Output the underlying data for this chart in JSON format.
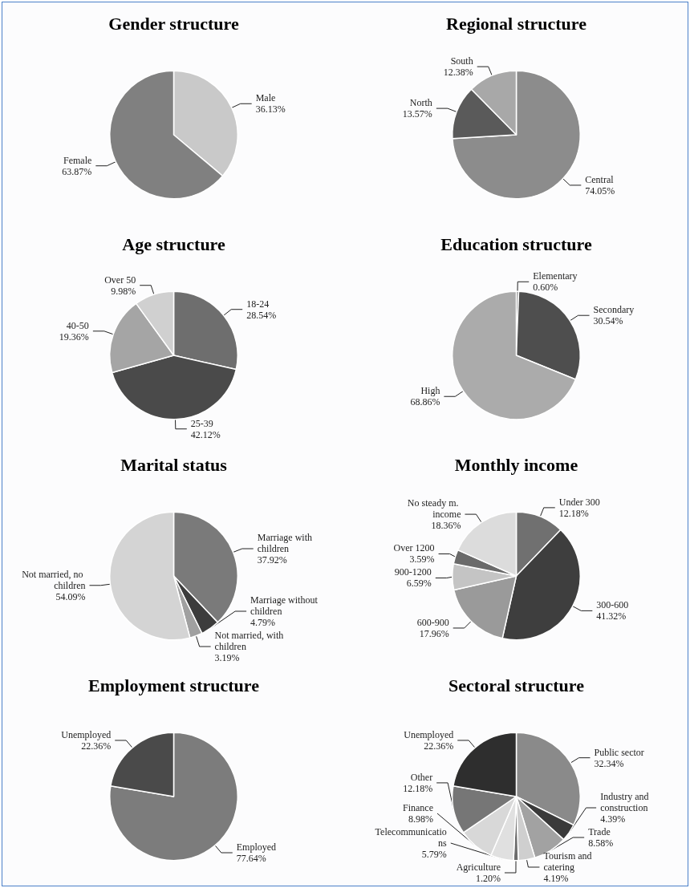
{
  "chart_data": [
    {
      "type": "pie",
      "title": "Gender structure",
      "categories": [
        "Male",
        "Female"
      ],
      "values": [
        36.13,
        63.87
      ],
      "value_labels": [
        "36.13%",
        "63.87%"
      ],
      "colors": [
        "#c9c9c9",
        "#808080"
      ]
    },
    {
      "type": "pie",
      "title": "Regional structure",
      "categories": [
        "Central",
        "North",
        "South"
      ],
      "values": [
        74.05,
        13.57,
        12.38
      ],
      "value_labels": [
        "74.05%",
        "13.57%",
        "12.38%"
      ],
      "colors": [
        "#8c8c8c",
        "#5a5a5a",
        "#a8a8a8"
      ]
    },
    {
      "type": "pie",
      "title": "Age structure",
      "categories": [
        "18-24",
        "25-39",
        "40-50",
        "Over 50"
      ],
      "values": [
        28.54,
        42.12,
        19.36,
        9.98
      ],
      "value_labels": [
        "28.54%",
        "42.12%",
        "19.36%",
        "9.98%"
      ],
      "colors": [
        "#6e6e6e",
        "#4a4a4a",
        "#a5a5a5",
        "#d0d0d0"
      ]
    },
    {
      "type": "pie",
      "title": "Education structure",
      "categories": [
        "Elementary",
        "Secondary",
        "High"
      ],
      "values": [
        0.6,
        30.54,
        68.86
      ],
      "value_labels": [
        "0.60%",
        "30.54%",
        "68.86%"
      ],
      "colors": [
        "#707070",
        "#4e4e4e",
        "#ababab"
      ]
    },
    {
      "type": "pie",
      "title": "Marital status",
      "categories": [
        "Marriage with children",
        "Marriage without children",
        "Not married, with children",
        "Not married, no children"
      ],
      "values": [
        37.92,
        4.79,
        3.19,
        54.09
      ],
      "value_labels": [
        "37.92%",
        "4.79%",
        "3.19%",
        "54.09%"
      ],
      "colors": [
        "#7a7a7a",
        "#3c3c3c",
        "#a0a0a0",
        "#d4d4d4"
      ]
    },
    {
      "type": "pie",
      "title": "Monthly income",
      "categories": [
        "Under 300",
        "300-600",
        "600-900",
        "900-1200",
        "Over 1200",
        "No steady m. income"
      ],
      "values": [
        12.18,
        41.32,
        17.96,
        6.59,
        3.59,
        18.36
      ],
      "value_labels": [
        "12.18%",
        "41.32%",
        "17.96%",
        "6.59%",
        "3.59%",
        "18.36%"
      ],
      "colors": [
        "#707070",
        "#3e3e3e",
        "#9a9a9a",
        "#c4c4c4",
        "#6a6a6a",
        "#dcdcdc"
      ]
    },
    {
      "type": "pie",
      "title": "Employment structure",
      "categories": [
        "Employed",
        "Unemployed"
      ],
      "values": [
        77.64,
        22.36
      ],
      "value_labels": [
        "77.64%",
        "22.36%"
      ],
      "colors": [
        "#7c7c7c",
        "#4a4a4a"
      ]
    },
    {
      "type": "pie",
      "title": "Sectoral structure",
      "categories": [
        "Public sector",
        "Industry and construction",
        "Trade",
        "Tourism and catering",
        "Agriculture",
        "Telecommunications",
        "Finance",
        "Other",
        "Unemployed"
      ],
      "values": [
        32.34,
        4.39,
        8.58,
        4.19,
        1.2,
        5.79,
        8.98,
        12.18,
        22.36
      ],
      "value_labels": [
        "32.34%",
        "4.39%",
        "8.58%",
        "4.19%",
        "1.20%",
        "5.79%",
        "8.98%",
        "12.18%",
        "22.36%"
      ],
      "colors": [
        "#8a8a8a",
        "#3a3a3a",
        "#a2a2a2",
        "#cfcfcf",
        "#6c6c6c",
        "#e0e0e0",
        "#d8d8d8",
        "#767676",
        "#2e2e2e"
      ]
    }
  ]
}
